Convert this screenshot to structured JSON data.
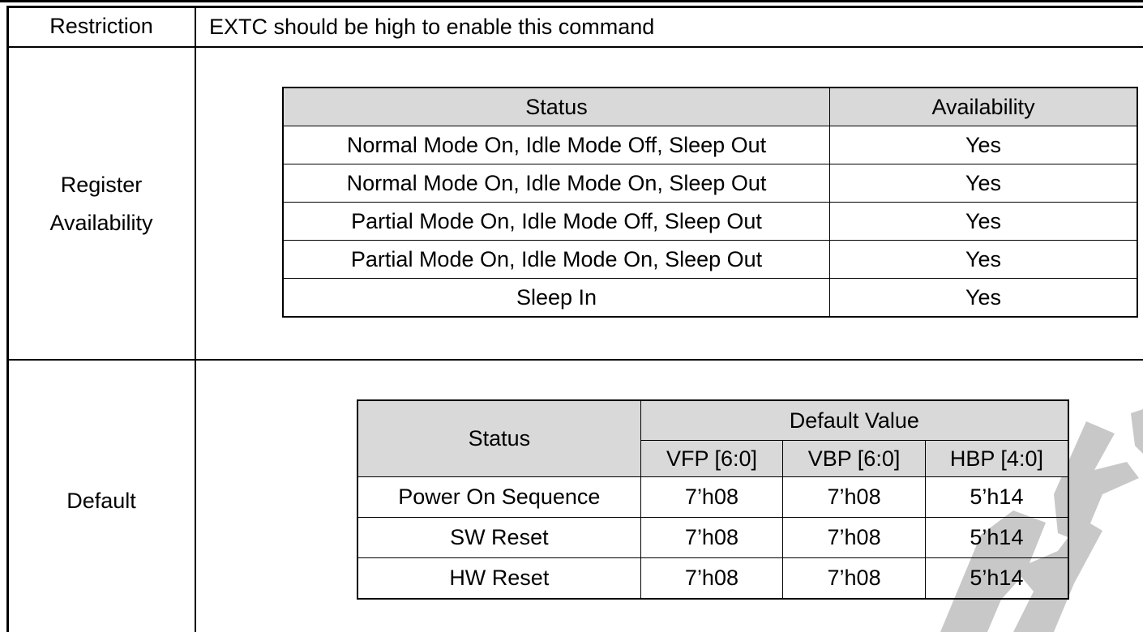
{
  "restriction": {
    "label": "Restriction",
    "text": "EXTC should be high to enable this command"
  },
  "register_availability": {
    "label_line1": "Register",
    "label_line2": "Availability",
    "headers": {
      "status": "Status",
      "availability": "Availability"
    },
    "rows": [
      {
        "status": "Normal Mode On, Idle Mode Off, Sleep Out",
        "availability": "Yes"
      },
      {
        "status": "Normal Mode On, Idle Mode On, Sleep Out",
        "availability": "Yes"
      },
      {
        "status": "Partial Mode On, Idle Mode Off, Sleep Out",
        "availability": "Yes"
      },
      {
        "status": "Partial Mode On, Idle Mode On, Sleep Out",
        "availability": "Yes"
      },
      {
        "status": "Sleep In",
        "availability": "Yes"
      }
    ]
  },
  "default": {
    "label": "Default",
    "headers": {
      "status": "Status",
      "default_value": "Default Value",
      "vfp": "VFP [6:0]",
      "vbp": "VBP [6:0]",
      "hbp": "HBP [4:0]"
    },
    "rows": [
      {
        "status": "Power On Sequence",
        "vfp": "7’h08",
        "vbp": "7’h08",
        "hbp": "5’h14"
      },
      {
        "status": "SW Reset",
        "vfp": "7’h08",
        "vbp": "7’h08",
        "hbp": "5’h14"
      },
      {
        "status": "HW Reset",
        "vfp": "7’h08",
        "vbp": "7’h08",
        "hbp": "5’h14"
      }
    ]
  },
  "watermark_color": "#c8c8c8"
}
